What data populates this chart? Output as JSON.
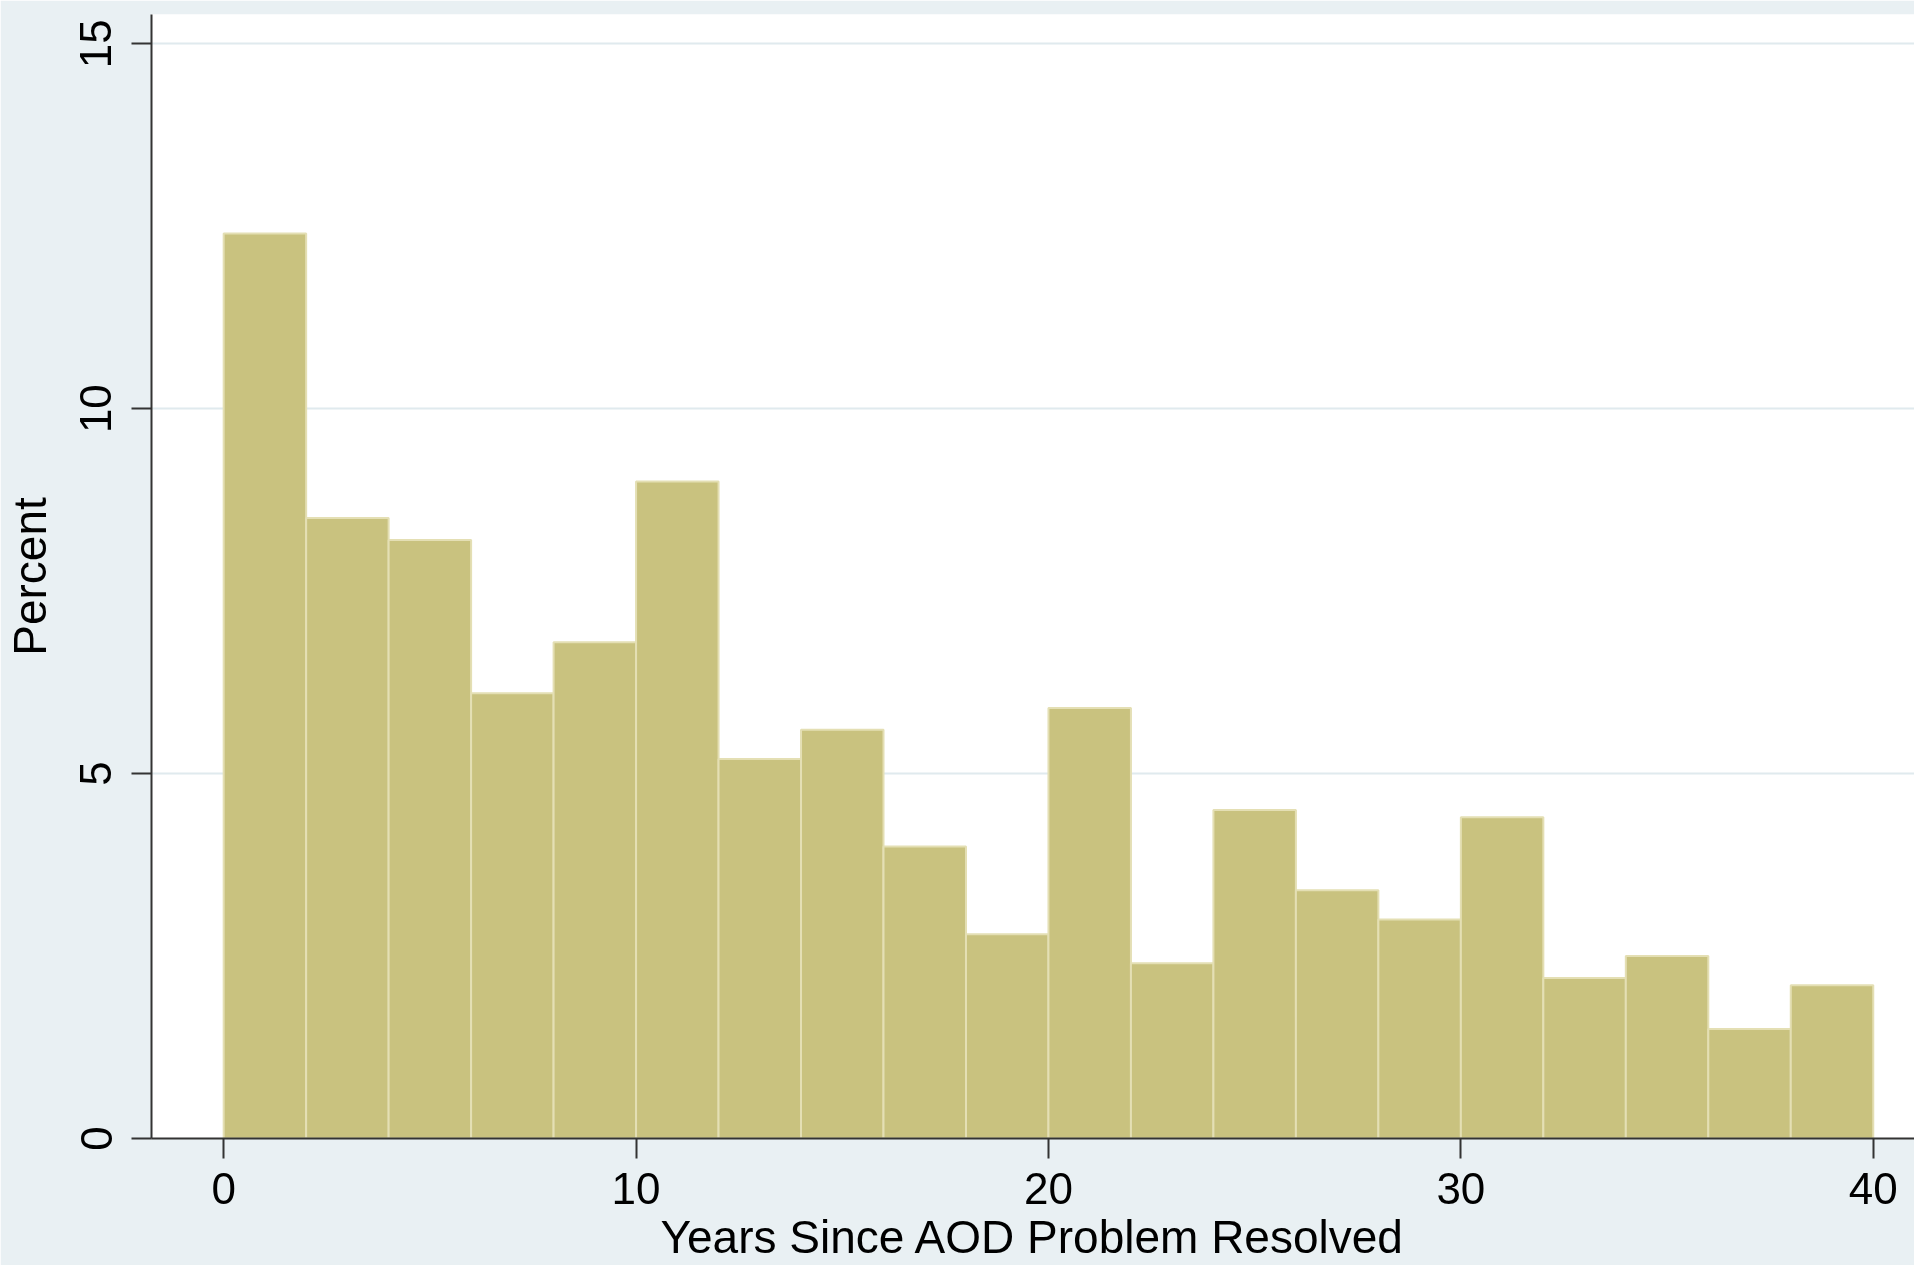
{
  "chart_data": {
    "type": "histogram",
    "xlabel": "Years Since AOD Problem Resolved",
    "ylabel": "Percent",
    "bins": [
      0,
      2,
      4,
      6,
      8,
      10,
      12,
      14,
      16,
      18,
      20,
      22,
      24,
      26,
      28,
      30,
      32,
      34,
      36,
      38,
      40
    ],
    "values": [
      12.4,
      8.5,
      8.2,
      6.1,
      6.8,
      9.0,
      5.2,
      5.6,
      4.0,
      2.8,
      5.9,
      2.4,
      4.5,
      3.4,
      3.0,
      4.4,
      2.2,
      2.5,
      1.5,
      2.1
    ],
    "color": "#c9c27f",
    "xlim": [
      -1.75,
      41
    ],
    "ylim": [
      0,
      15.4
    ],
    "xticks": [
      0,
      10,
      20,
      30,
      40
    ],
    "yticks": [
      0,
      5,
      10,
      15
    ],
    "grid": "y"
  }
}
